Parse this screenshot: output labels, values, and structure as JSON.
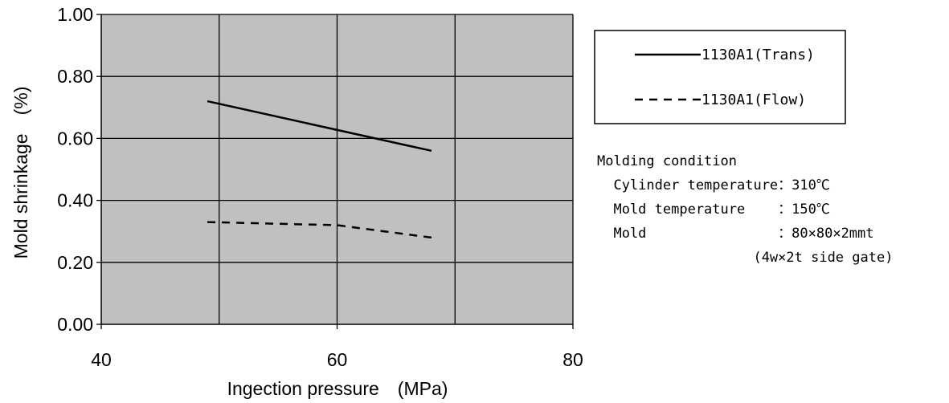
{
  "chart_data": {
    "type": "line",
    "xlabel": "Ingection pressure　(MPa)",
    "ylabel": "Mold shrinkage　(%)",
    "xlim": [
      40,
      80
    ],
    "ylim": [
      0,
      1.0
    ],
    "x_ticks": [
      40,
      60,
      80
    ],
    "x_tick_labels": [
      "40",
      "60",
      "80"
    ],
    "y_ticks": [
      0,
      0.2,
      0.4,
      0.6,
      0.8,
      1.0
    ],
    "y_tick_labels": [
      "0.00",
      "0.20",
      "0.40",
      "0.60",
      "0.80",
      "1.00"
    ],
    "grid_x": [
      40,
      50,
      60,
      70,
      80
    ],
    "grid": true,
    "plot_background": "#c0c0c0",
    "series": [
      {
        "name": "1130A1(Trans)",
        "style": "solid",
        "x": [
          49,
          68
        ],
        "y": [
          0.72,
          0.56
        ]
      },
      {
        "name": "1130A1(Flow)",
        "style": "dashed",
        "x": [
          49,
          60,
          68
        ],
        "y": [
          0.33,
          0.32,
          0.28
        ]
      }
    ],
    "legend_position": "right"
  },
  "notes": {
    "title": "Molding condition",
    "lines": [
      "  Cylinder temperature：310℃",
      "  Mold temperature    ：150℃",
      "  Mold                ：80×80×2mmt",
      "                   (4w×2t side gate)"
    ]
  }
}
